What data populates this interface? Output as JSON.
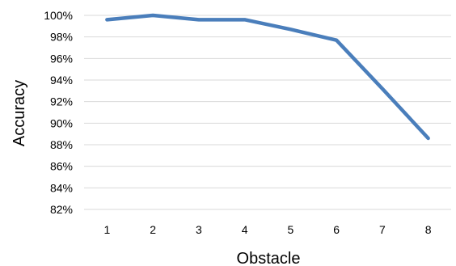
{
  "chart_data": {
    "type": "line",
    "xlabel": "Obstacle",
    "ylabel": "Accuracy",
    "x": [
      "1",
      "2",
      "3",
      "4",
      "5",
      "6",
      "7",
      "8"
    ],
    "y_ticks": [
      "82%",
      "84%",
      "86%",
      "88%",
      "90%",
      "92%",
      "94%",
      "96%",
      "98%",
      "100%"
    ],
    "ylim": [
      82,
      100
    ],
    "grid": true,
    "series": [
      {
        "color": "#4a7ebb",
        "values": [
          99.6,
          100.0,
          99.6,
          99.6,
          98.7,
          97.7,
          93.2,
          88.6
        ]
      }
    ]
  }
}
